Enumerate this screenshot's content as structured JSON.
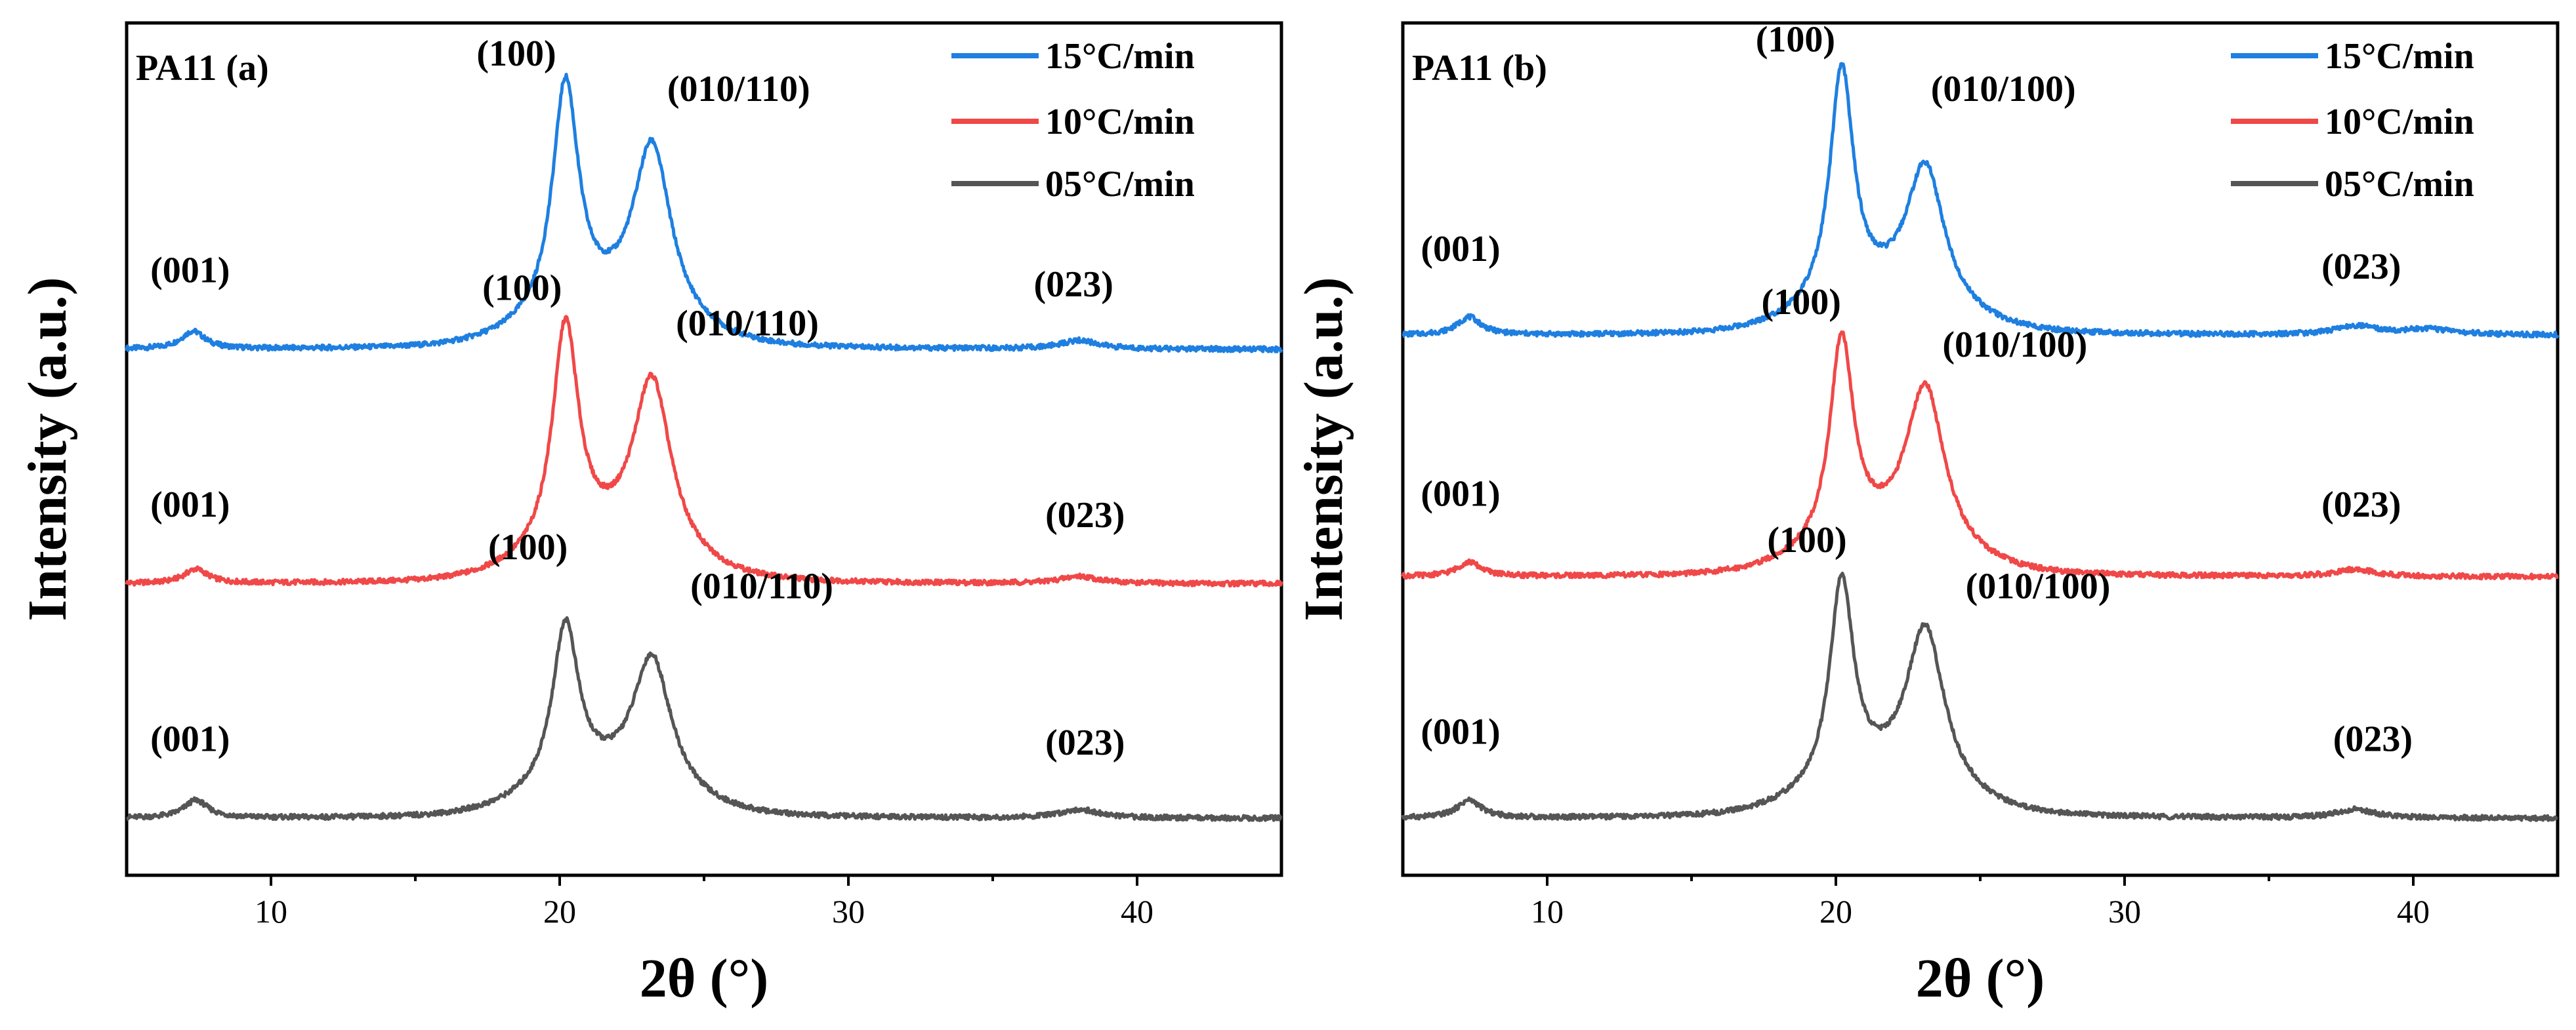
{
  "colors": {
    "s15": "#1E7FE0",
    "s10": "#F04848",
    "s05": "#555555"
  },
  "chart_data": [
    {
      "type": "line",
      "panel_label": "PA11 (a)",
      "xlabel": "2θ (°)",
      "ylabel": "Intensity (a.u.)",
      "xlim": [
        5,
        45
      ],
      "ylim": [
        0,
        12
      ],
      "x_ticks": [
        "10",
        "20",
        "30",
        "40"
      ],
      "legend": [
        "15°C/min",
        "10°C/min",
        "05°C/min"
      ],
      "series": [
        {
          "name": "15°C/min",
          "color_key": "s15",
          "baseline": 7.4,
          "peaks": [
            [
              7.3,
              0.25,
              0.5
            ],
            [
              20.2,
              3.3,
              0.55
            ],
            [
              23.2,
              2.5,
              0.8
            ],
            [
              38.0,
              0.12,
              0.8
            ]
          ],
          "annotations": [
            {
              "text": "(001)",
              "x": 7.2,
              "y": 8.35
            },
            {
              "text": "(100)",
              "x": 18.5,
              "y": 11.4
            },
            {
              "text": "(010/110)",
              "x": 26.2,
              "y": 10.9
            },
            {
              "text": "(023)",
              "x": 37.8,
              "y": 8.15
            }
          ]
        },
        {
          "name": "10°C/min",
          "color_key": "s10",
          "baseline": 4.1,
          "peaks": [
            [
              7.4,
              0.2,
              0.5
            ],
            [
              20.2,
              3.2,
              0.55
            ],
            [
              23.2,
              2.5,
              0.8
            ],
            [
              38.0,
              0.1,
              0.8
            ]
          ],
          "annotations": [
            {
              "text": "(001)",
              "x": 7.2,
              "y": 5.05
            },
            {
              "text": "(100)",
              "x": 18.7,
              "y": 8.1
            },
            {
              "text": "(010/110)",
              "x": 26.5,
              "y": 7.6
            },
            {
              "text": "(023)",
              "x": 38.2,
              "y": 4.9
            }
          ]
        },
        {
          "name": "05°C/min",
          "color_key": "s05",
          "baseline": 0.8,
          "peaks": [
            [
              7.4,
              0.25,
              0.5
            ],
            [
              20.2,
              2.3,
              0.55
            ],
            [
              23.2,
              1.9,
              0.8
            ],
            [
              38.0,
              0.12,
              0.8
            ]
          ],
          "annotations": [
            {
              "text": "(001)",
              "x": 7.2,
              "y": 1.75
            },
            {
              "text": "(100)",
              "x": 18.9,
              "y": 4.45
            },
            {
              "text": "(010/110)",
              "x": 27.0,
              "y": 3.9
            },
            {
              "text": "(023)",
              "x": 38.2,
              "y": 1.7
            }
          ]
        }
      ]
    },
    {
      "type": "line",
      "panel_label": "PA11 (b)",
      "xlabel": "2θ (°)",
      "ylabel": "Intensity (a.u.)",
      "xlim": [
        5,
        45
      ],
      "ylim": [
        0,
        12
      ],
      "x_ticks": [
        "10",
        "20",
        "30",
        "40"
      ],
      "legend": [
        "15°C/min",
        "10°C/min",
        "05°C/min"
      ],
      "series": [
        {
          "name": "15°C/min",
          "color_key": "s15",
          "baseline": 7.6,
          "peaks": [
            [
              7.3,
              0.25,
              0.5
            ],
            [
              20.2,
              3.3,
              0.5
            ],
            [
              23.1,
              2.0,
              0.8
            ],
            [
              38.0,
              0.12,
              0.8
            ],
            [
              40.5,
              0.08,
              1.2
            ]
          ],
          "annotations": [
            {
              "text": "(001)",
              "x": 7.0,
              "y": 8.65
            },
            {
              "text": "(100)",
              "x": 18.6,
              "y": 11.6
            },
            {
              "text": "(010/100)",
              "x": 25.8,
              "y": 10.9
            },
            {
              "text": "(023)",
              "x": 38.2,
              "y": 8.4
            }
          ]
        },
        {
          "name": "10°C/min",
          "color_key": "s10",
          "baseline": 4.2,
          "peaks": [
            [
              7.3,
              0.2,
              0.5
            ],
            [
              20.2,
              2.9,
              0.5
            ],
            [
              23.1,
              2.3,
              0.8
            ],
            [
              38.0,
              0.1,
              0.8
            ]
          ],
          "annotations": [
            {
              "text": "(001)",
              "x": 7.0,
              "y": 5.2
            },
            {
              "text": "(100)",
              "x": 18.8,
              "y": 7.9
            },
            {
              "text": "(010/100)",
              "x": 26.2,
              "y": 7.3
            },
            {
              "text": "(023)",
              "x": 38.2,
              "y": 5.05
            }
          ]
        },
        {
          "name": "05°C/min",
          "color_key": "s05",
          "baseline": 0.8,
          "peaks": [
            [
              7.3,
              0.25,
              0.5
            ],
            [
              20.2,
              2.9,
              0.5
            ],
            [
              23.1,
              2.3,
              0.8
            ],
            [
              38.0,
              0.12,
              0.8
            ]
          ],
          "annotations": [
            {
              "text": "(001)",
              "x": 7.0,
              "y": 1.85
            },
            {
              "text": "(100)",
              "x": 19.0,
              "y": 4.55
            },
            {
              "text": "(010/100)",
              "x": 27.0,
              "y": 3.9
            },
            {
              "text": "(023)",
              "x": 38.6,
              "y": 1.75
            }
          ]
        }
      ]
    }
  ]
}
